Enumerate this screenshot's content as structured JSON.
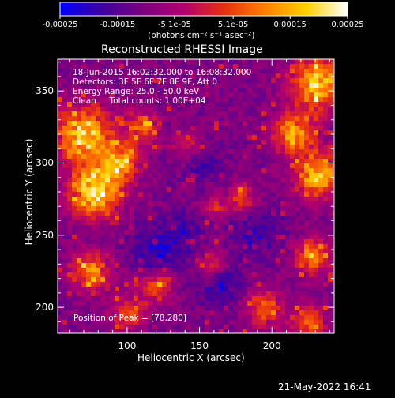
{
  "chart_data": {
    "type": "heatmap",
    "title": "Reconstructed RHESSI Image",
    "xlabel": "Heliocentric X (arcsec)",
    "ylabel": "Heliocentric Y (arcsec)",
    "xlim": [
      52,
      243
    ],
    "ylim": [
      182,
      372
    ],
    "x_ticks": [
      100,
      150,
      200
    ],
    "y_ticks": [
      200,
      250,
      300,
      350
    ],
    "colorbar": {
      "range": [
        -0.00025,
        0.00025
      ],
      "tick_labels": [
        "-0.00025",
        "-0.00015",
        "-5.1e-05",
        "5.1e-05",
        "0.00015",
        "0.00025"
      ],
      "tick_values": [
        -0.00025,
        -0.00015,
        -5.1e-05,
        5.1e-05,
        0.00015,
        0.00025
      ],
      "unit_label": "(photons cm⁻² s⁻¹ asec⁻²)",
      "colormap": [
        "#0000ff",
        "#3c00a0",
        "#7a0080",
        "#b00070",
        "#e83010",
        "#ff8000",
        "#ffd000",
        "#ffffff"
      ]
    },
    "hot_spots": [
      {
        "x": 78,
        "y": 280,
        "strength": 1.0,
        "sigma": 12
      },
      {
        "x": 70,
        "y": 320,
        "strength": 0.9,
        "sigma": 14
      },
      {
        "x": 95,
        "y": 300,
        "strength": 0.7,
        "sigma": 9
      },
      {
        "x": 110,
        "y": 325,
        "strength": 0.55,
        "sigma": 8
      },
      {
        "x": 140,
        "y": 312,
        "strength": 0.35,
        "sigma": 7
      },
      {
        "x": 232,
        "y": 355,
        "strength": 0.85,
        "sigma": 13
      },
      {
        "x": 215,
        "y": 320,
        "strength": 0.75,
        "sigma": 10
      },
      {
        "x": 232,
        "y": 292,
        "strength": 0.8,
        "sigma": 11
      },
      {
        "x": 180,
        "y": 275,
        "strength": 0.5,
        "sigma": 7
      },
      {
        "x": 160,
        "y": 270,
        "strength": 0.35,
        "sigma": 6
      },
      {
        "x": 75,
        "y": 225,
        "strength": 0.6,
        "sigma": 10
      },
      {
        "x": 120,
        "y": 215,
        "strength": 0.55,
        "sigma": 8
      },
      {
        "x": 100,
        "y": 195,
        "strength": 0.5,
        "sigma": 8
      },
      {
        "x": 195,
        "y": 200,
        "strength": 0.55,
        "sigma": 9
      },
      {
        "x": 228,
        "y": 235,
        "strength": 0.65,
        "sigma": 9
      },
      {
        "x": 160,
        "y": 230,
        "strength": 0.45,
        "sigma": 7
      },
      {
        "x": 225,
        "y": 190,
        "strength": 0.55,
        "sigma": 8
      }
    ],
    "cold_spots": [
      {
        "x": 120,
        "y": 238,
        "strength": 0.9,
        "sigma": 12
      },
      {
        "x": 165,
        "y": 218,
        "strength": 0.8,
        "sigma": 11
      },
      {
        "x": 150,
        "y": 300,
        "strength": 0.6,
        "sigma": 9
      },
      {
        "x": 190,
        "y": 252,
        "strength": 0.7,
        "sigma": 12
      },
      {
        "x": 140,
        "y": 255,
        "strength": 0.6,
        "sigma": 10
      }
    ],
    "annotations": [
      "18-Jun-2015 16:02:32.000 to 16:08:32.000",
      "Detectors: 3F 5F 6F 7F 8F 9F, Att 0",
      "Energy Range: 25.0 - 50.0 keV",
      "Clean     Total counts: 1.00E+04"
    ],
    "peak_label": "Position of Peak = [78,280]",
    "peak": [
      78,
      280
    ]
  },
  "footer": {
    "timestamp": "21-May-2022 16:41"
  }
}
